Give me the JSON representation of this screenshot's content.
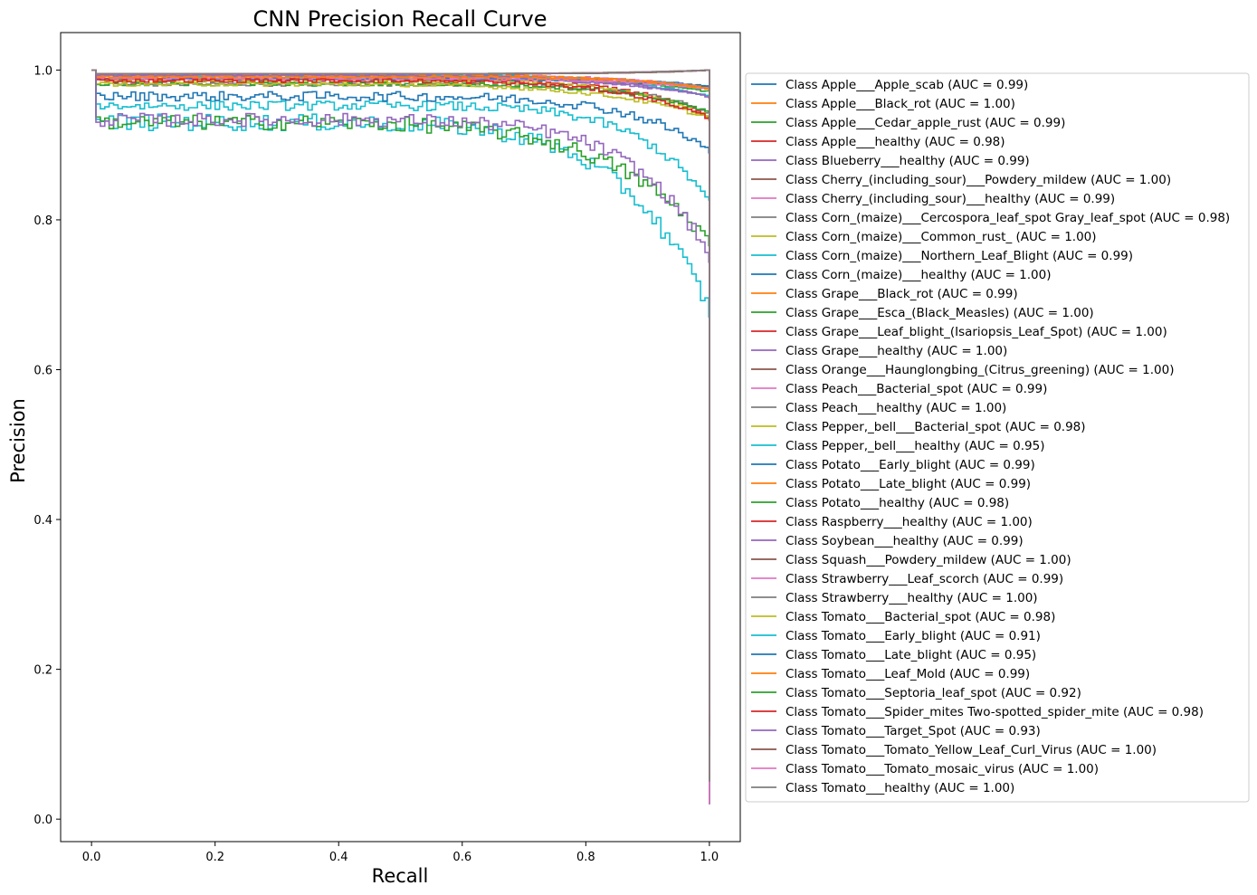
{
  "chart_data": {
    "type": "line",
    "title": "CNN Precision Recall Curve",
    "xlabel": "Recall",
    "ylabel": "Precision",
    "xlim": [
      -0.05,
      1.05
    ],
    "ylim": [
      -0.03,
      1.05
    ],
    "xticks": [
      "0.0",
      "0.2",
      "0.4",
      "0.6",
      "0.8",
      "1.0"
    ],
    "yticks": [
      "0.0",
      "0.2",
      "0.4",
      "0.6",
      "0.8",
      "1.0"
    ],
    "grid": false,
    "legend_position": "right-outside",
    "series": [
      {
        "name": "Class Apple___Apple_scab (AUC = 0.99)",
        "color": "#1f77b4",
        "auc": 0.99
      },
      {
        "name": "Class Apple___Black_rot (AUC = 1.00)",
        "color": "#ff7f0e",
        "auc": 1.0
      },
      {
        "name": "Class Apple___Cedar_apple_rust (AUC = 0.99)",
        "color": "#2ca02c",
        "auc": 0.99
      },
      {
        "name": "Class Apple___healthy (AUC = 0.98)",
        "color": "#d62728",
        "auc": 0.98
      },
      {
        "name": "Class Blueberry___healthy (AUC = 0.99)",
        "color": "#9467bd",
        "auc": 0.99
      },
      {
        "name": "Class Cherry_(including_sour)___Powdery_mildew (AUC = 1.00)",
        "color": "#8c564b",
        "auc": 1.0
      },
      {
        "name": "Class Cherry_(including_sour)___healthy (AUC = 0.99)",
        "color": "#e377c2",
        "auc": 0.99
      },
      {
        "name": "Class Corn_(maize)___Cercospora_leaf_spot Gray_leaf_spot (AUC = 0.98)",
        "color": "#7f7f7f",
        "auc": 0.98
      },
      {
        "name": "Class Corn_(maize)___Common_rust_ (AUC = 1.00)",
        "color": "#bcbd22",
        "auc": 1.0
      },
      {
        "name": "Class Corn_(maize)___Northern_Leaf_Blight (AUC = 0.99)",
        "color": "#17becf",
        "auc": 0.99
      },
      {
        "name": "Class Corn_(maize)___healthy (AUC = 1.00)",
        "color": "#1f77b4",
        "auc": 1.0
      },
      {
        "name": "Class Grape___Black_rot (AUC = 0.99)",
        "color": "#ff7f0e",
        "auc": 0.99
      },
      {
        "name": "Class Grape___Esca_(Black_Measles) (AUC = 1.00)",
        "color": "#2ca02c",
        "auc": 1.0
      },
      {
        "name": "Class Grape___Leaf_blight_(Isariopsis_Leaf_Spot) (AUC = 1.00)",
        "color": "#d62728",
        "auc": 1.0
      },
      {
        "name": "Class Grape___healthy (AUC = 1.00)",
        "color": "#9467bd",
        "auc": 1.0
      },
      {
        "name": "Class Orange___Haunglongbing_(Citrus_greening) (AUC = 1.00)",
        "color": "#8c564b",
        "auc": 1.0
      },
      {
        "name": "Class Peach___Bacterial_spot (AUC = 0.99)",
        "color": "#e377c2",
        "auc": 0.99
      },
      {
        "name": "Class Peach___healthy (AUC = 1.00)",
        "color": "#7f7f7f",
        "auc": 1.0
      },
      {
        "name": "Class Pepper,_bell___Bacterial_spot (AUC = 0.98)",
        "color": "#bcbd22",
        "auc": 0.98
      },
      {
        "name": "Class Pepper,_bell___healthy (AUC = 0.95)",
        "color": "#17becf",
        "auc": 0.95
      },
      {
        "name": "Class Potato___Early_blight (AUC = 0.99)",
        "color": "#1f77b4",
        "auc": 0.99
      },
      {
        "name": "Class Potato___Late_blight (AUC = 0.99)",
        "color": "#ff7f0e",
        "auc": 0.99
      },
      {
        "name": "Class Potato___healthy (AUC = 0.98)",
        "color": "#2ca02c",
        "auc": 0.98
      },
      {
        "name": "Class Raspberry___healthy (AUC = 1.00)",
        "color": "#d62728",
        "auc": 1.0
      },
      {
        "name": "Class Soybean___healthy (AUC = 0.99)",
        "color": "#9467bd",
        "auc": 0.99
      },
      {
        "name": "Class Squash___Powdery_mildew (AUC = 1.00)",
        "color": "#8c564b",
        "auc": 1.0
      },
      {
        "name": "Class Strawberry___Leaf_scorch (AUC = 0.99)",
        "color": "#e377c2",
        "auc": 0.99
      },
      {
        "name": "Class Strawberry___healthy (AUC = 1.00)",
        "color": "#7f7f7f",
        "auc": 1.0
      },
      {
        "name": "Class Tomato___Bacterial_spot (AUC = 0.98)",
        "color": "#bcbd22",
        "auc": 0.98
      },
      {
        "name": "Class Tomato___Early_blight (AUC = 0.91)",
        "color": "#17becf",
        "auc": 0.91
      },
      {
        "name": "Class Tomato___Late_blight (AUC = 0.95)",
        "color": "#1f77b4",
        "auc": 0.95
      },
      {
        "name": "Class Tomato___Leaf_Mold (AUC = 0.99)",
        "color": "#ff7f0e",
        "auc": 0.99
      },
      {
        "name": "Class Tomato___Septoria_leaf_spot (AUC = 0.92)",
        "color": "#2ca02c",
        "auc": 0.92
      },
      {
        "name": "Class Tomato___Spider_mites Two-spotted_spider_mite (AUC = 0.98)",
        "color": "#d62728",
        "auc": 0.98
      },
      {
        "name": "Class Tomato___Target_Spot (AUC = 0.93)",
        "color": "#9467bd",
        "auc": 0.93
      },
      {
        "name": "Class Tomato___Tomato_Yellow_Leaf_Curl_Virus (AUC = 1.00)",
        "color": "#8c564b",
        "auc": 1.0
      },
      {
        "name": "Class Tomato___Tomato_mosaic_virus (AUC = 1.00)",
        "color": "#e377c2",
        "auc": 1.0
      },
      {
        "name": "Class Tomato___healthy (AUC = 1.00)",
        "color": "#7f7f7f",
        "auc": 1.0
      }
    ]
  }
}
